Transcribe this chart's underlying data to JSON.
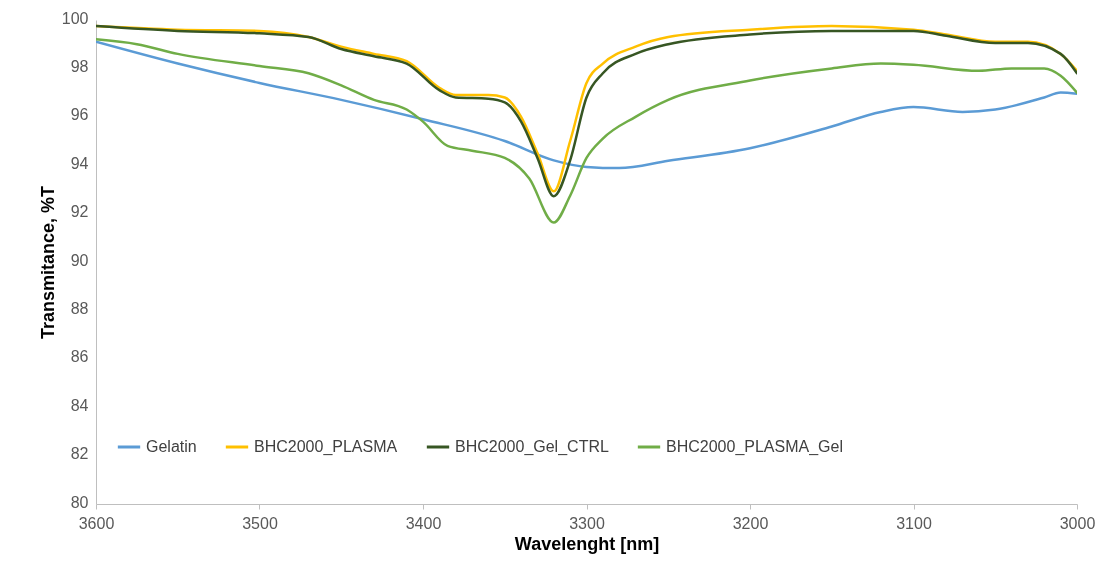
{
  "chart_data": {
    "type": "line",
    "xlabel": "Wavelenght [nm]",
    "ylabel": "Transmitance, %T",
    "xlim": [
      3600,
      3000
    ],
    "xticks": [
      3600,
      3500,
      3400,
      3300,
      3200,
      3100,
      3000
    ],
    "ylim": [
      80,
      100
    ],
    "yticks": [
      80,
      82,
      84,
      86,
      88,
      90,
      92,
      94,
      96,
      98,
      100
    ],
    "grid": false,
    "legend": "bottom",
    "marker": "none",
    "line_style": "solid",
    "series": [
      {
        "name": "Gelatin",
        "color": "#5b9bd5",
        "x": [
          3600,
          3550,
          3500,
          3450,
          3400,
          3350,
          3320,
          3300,
          3280,
          3250,
          3200,
          3150,
          3120,
          3100,
          3070,
          3050,
          3020,
          3010,
          3000
        ],
        "values": [
          99.1,
          98.2,
          97.4,
          96.7,
          95.9,
          95.0,
          94.2,
          93.93,
          93.88,
          94.18,
          94.7,
          95.6,
          96.2,
          96.4,
          96.2,
          96.3,
          96.8,
          97.0,
          96.95
        ]
      },
      {
        "name": "BHC2000_PLASMA",
        "color": "#ffc000",
        "x": [
          3600,
          3550,
          3500,
          3470,
          3450,
          3430,
          3410,
          3390,
          3380,
          3360,
          3350,
          3340,
          3330,
          3320,
          3310,
          3300,
          3290,
          3270,
          3250,
          3200,
          3150,
          3100,
          3080,
          3050,
          3030,
          3010,
          3000
        ],
        "values": [
          99.75,
          99.6,
          99.55,
          99.3,
          98.9,
          98.6,
          98.3,
          97.2,
          96.9,
          96.9,
          96.8,
          96.0,
          94.5,
          92.92,
          95.0,
          97.4,
          98.2,
          98.9,
          99.3,
          99.6,
          99.75,
          99.6,
          99.4,
          99.1,
          99.1,
          98.6,
          97.9
        ]
      },
      {
        "name": "BHC2000_Gel_CTRL",
        "color": "#375623",
        "x": [
          3600,
          3550,
          3500,
          3470,
          3450,
          3430,
          3410,
          3390,
          3380,
          3360,
          3350,
          3340,
          3330,
          3320,
          3310,
          3300,
          3290,
          3270,
          3250,
          3200,
          3150,
          3100,
          3080,
          3050,
          3030,
          3010,
          3000
        ],
        "values": [
          99.75,
          99.55,
          99.45,
          99.3,
          98.8,
          98.5,
          98.2,
          97.1,
          96.8,
          96.75,
          96.6,
          95.8,
          94.3,
          92.72,
          94.2,
          96.8,
          97.8,
          98.6,
          99.0,
          99.4,
          99.55,
          99.55,
          99.35,
          99.05,
          99.05,
          98.6,
          97.8
        ]
      },
      {
        "name": "BHC2000_PLASMA_Gel",
        "color": "#70ad47",
        "x": [
          3600,
          3575,
          3550,
          3500,
          3470,
          3450,
          3430,
          3410,
          3400,
          3385,
          3370,
          3350,
          3335,
          3320,
          3310,
          3300,
          3290,
          3270,
          3250,
          3200,
          3150,
          3120,
          3100,
          3060,
          3040,
          3020,
          3010,
          3000
        ],
        "values": [
          99.2,
          99.0,
          98.6,
          98.1,
          97.8,
          97.3,
          96.7,
          96.3,
          95.8,
          94.8,
          94.6,
          94.3,
          93.45,
          91.63,
          92.74,
          94.3,
          95.1,
          96.0,
          96.7,
          97.5,
          98.0,
          98.2,
          98.15,
          97.9,
          98.0,
          98.0,
          97.7,
          97.0
        ]
      }
    ]
  }
}
